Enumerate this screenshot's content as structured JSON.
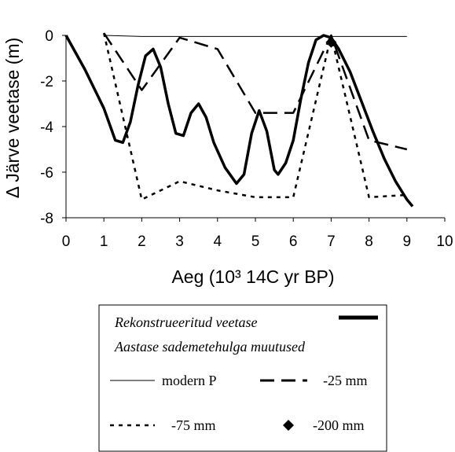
{
  "chart_data": {
    "type": "line",
    "xlabel": "Aeg (10³ 14C yr BP)",
    "ylabel": "Δ Järve veetase (m)",
    "xlim": [
      0,
      10
    ],
    "ylim": [
      -8,
      0
    ],
    "xticks": [
      "0",
      "1",
      "2",
      "3",
      "4",
      "5",
      "6",
      "7",
      "8",
      "9",
      "10"
    ],
    "yticks": [
      "0",
      "-2",
      "-4",
      "-6",
      "-8"
    ],
    "grid": false,
    "legend_position": "below",
    "legend_title_lines": [
      "Rekonstrueeritud veetase",
      "Aastase sademetehulga  muutused"
    ],
    "series": [
      {
        "name": "Rekonstrueeritud veetase",
        "style": "thick-solid",
        "color": "#000000",
        "x": [
          0,
          0.5,
          1.0,
          1.3,
          1.5,
          1.7,
          1.9,
          2.1,
          2.3,
          2.5,
          2.7,
          2.9,
          3.1,
          3.3,
          3.5,
          3.7,
          3.9,
          4.2,
          4.5,
          4.7,
          4.9,
          5.1,
          5.3,
          5.5,
          5.6,
          5.8,
          6.0,
          6.2,
          6.4,
          6.6,
          6.8,
          7.0,
          7.2,
          7.5,
          7.8,
          8.1,
          8.4,
          8.7,
          9.0,
          9.15
        ],
        "y": [
          0,
          -1.5,
          -3.2,
          -4.6,
          -4.7,
          -3.8,
          -2.2,
          -0.9,
          -0.6,
          -1.4,
          -3.0,
          -4.3,
          -4.4,
          -3.4,
          -3.0,
          -3.6,
          -4.7,
          -5.8,
          -6.5,
          -6.1,
          -4.3,
          -3.3,
          -4.2,
          -5.9,
          -6.1,
          -5.6,
          -4.6,
          -2.8,
          -1.2,
          -0.2,
          0,
          -0.1,
          -0.6,
          -1.6,
          -2.9,
          -4.2,
          -5.4,
          -6.4,
          -7.2,
          -7.5
        ]
      },
      {
        "name": "modern P",
        "style": "thin-solid",
        "color": "#000000",
        "x": [
          1,
          2,
          3,
          4,
          5,
          6,
          7,
          8,
          9
        ],
        "y": [
          0,
          -0.05,
          -0.05,
          -0.05,
          -0.05,
          -0.05,
          -0.05,
          -0.05,
          -0.05
        ]
      },
      {
        "name": "-25 mm",
        "style": "long-dash",
        "color": "#000000",
        "x": [
          1,
          2,
          3,
          4,
          5,
          6,
          7,
          8,
          9
        ],
        "y": [
          0.1,
          -2.4,
          -0.1,
          -0.6,
          -3.4,
          -3.4,
          0,
          -4.6,
          -5.0
        ]
      },
      {
        "name": "-75 mm",
        "style": "short-dash",
        "color": "#000000",
        "x": [
          1,
          2,
          3,
          4,
          5,
          6,
          7,
          8,
          9
        ],
        "y": [
          0.1,
          -7.2,
          -6.4,
          -6.8,
          -7.1,
          -7.1,
          0,
          -7.1,
          -7.0
        ]
      },
      {
        "name": "-200 mm",
        "style": "diamond-marker",
        "color": "#000000",
        "x": [
          7
        ],
        "y": [
          -0.3
        ]
      }
    ]
  }
}
